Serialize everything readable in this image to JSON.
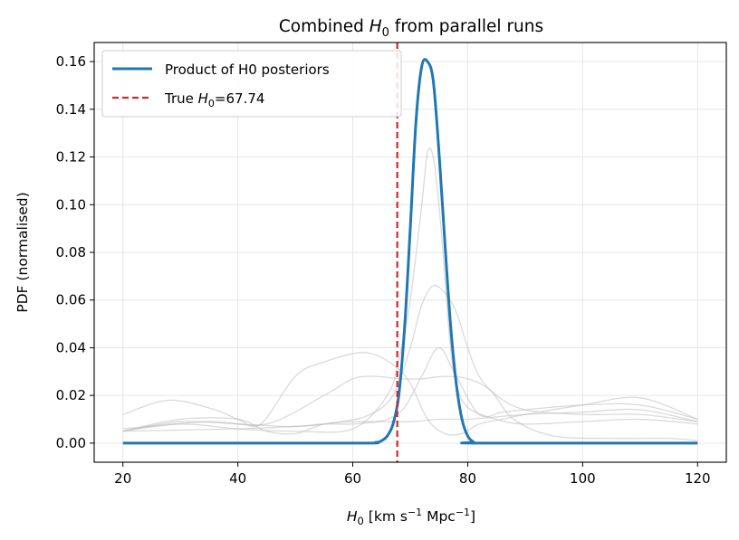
{
  "chart_data": {
    "type": "line",
    "title_parts": [
      "Combined ",
      "H",
      "0",
      " from parallel runs"
    ],
    "xlabel_parts": [
      "H",
      "0",
      " [km s",
      "−1",
      " Mpc",
      "−1",
      "]"
    ],
    "ylabel": "PDF (normalised)",
    "xlim": [
      15,
      125
    ],
    "ylim": [
      -0.008,
      0.168
    ],
    "x_ticks": [
      20,
      40,
      60,
      80,
      100,
      120
    ],
    "x_tick_labels": [
      "20",
      "40",
      "60",
      "80",
      "100",
      "120"
    ],
    "y_ticks": [
      0.0,
      0.02,
      0.04,
      0.06,
      0.08,
      0.1,
      0.12,
      0.14,
      0.16
    ],
    "y_tick_labels": [
      "0.00",
      "0.02",
      "0.04",
      "0.06",
      "0.08",
      "0.10",
      "0.12",
      "0.14",
      "0.16"
    ],
    "grid": true,
    "legend_position": "upper-left",
    "legend": {
      "product_label": "Product of H0 posteriors",
      "true_label_parts": [
        "True ",
        "H",
        "0",
        "=67.74"
      ]
    },
    "true_h0": 67.74,
    "colors": {
      "product": "#1f77b4",
      "true_line": "#d62728",
      "individual": "#bbbbbb",
      "grid": "#e6e6e6"
    },
    "series": [
      {
        "name": "Product of H0 posteriors",
        "role": "product",
        "x": [
          20,
          60,
          64,
          65,
          66,
          67,
          68,
          69,
          70,
          71,
          72,
          73,
          74,
          75,
          76,
          77,
          78,
          79,
          80,
          81,
          82,
          120
        ],
        "y": [
          0.0,
          0.0,
          0.0003,
          0.001,
          0.003,
          0.008,
          0.02,
          0.048,
          0.09,
          0.135,
          0.158,
          0.16,
          0.152,
          0.122,
          0.085,
          0.05,
          0.025,
          0.01,
          0.003,
          0.0005,
          0.0,
          0.0
        ]
      },
      {
        "role": "individual",
        "x": [
          20,
          30,
          40,
          45,
          50,
          55,
          60,
          63,
          66,
          69,
          72,
          75,
          78,
          82,
          86,
          90,
          100,
          110,
          120
        ],
        "y": [
          0.005,
          0.01,
          0.01,
          0.005,
          0.004,
          0.008,
          0.009,
          0.009,
          0.01,
          0.015,
          0.028,
          0.04,
          0.028,
          0.012,
          0.013,
          0.014,
          0.016,
          0.016,
          0.01
        ]
      },
      {
        "role": "individual",
        "x": [
          20,
          28,
          36,
          40,
          44,
          50,
          55,
          62,
          67,
          70,
          73,
          76,
          79,
          82,
          86,
          90,
          100,
          110,
          120
        ],
        "y": [
          0.012,
          0.018,
          0.014,
          0.01,
          0.008,
          0.028,
          0.034,
          0.038,
          0.033,
          0.025,
          0.01,
          0.004,
          0.004,
          0.008,
          0.01,
          0.012,
          0.016,
          0.019,
          0.01
        ]
      },
      {
        "role": "individual",
        "x": [
          20,
          30,
          40,
          50,
          60,
          66,
          68,
          70,
          72,
          73,
          74,
          75,
          76,
          77,
          78,
          80,
          85,
          90,
          100,
          110,
          120
        ],
        "y": [
          0.005,
          0.008,
          0.006,
          0.005,
          0.006,
          0.02,
          0.035,
          0.06,
          0.1,
          0.122,
          0.12,
          0.1,
          0.07,
          0.04,
          0.025,
          0.015,
          0.01,
          0.008,
          0.009,
          0.01,
          0.008
        ]
      },
      {
        "role": "individual",
        "x": [
          20,
          30,
          40,
          50,
          58,
          63,
          67,
          70,
          72,
          74,
          76,
          78,
          80,
          82,
          85,
          90,
          100,
          110,
          120
        ],
        "y": [
          0.005,
          0.009,
          0.008,
          0.007,
          0.009,
          0.012,
          0.02,
          0.04,
          0.058,
          0.066,
          0.063,
          0.055,
          0.04,
          0.028,
          0.02,
          0.014,
          0.012,
          0.012,
          0.009
        ]
      },
      {
        "role": "individual",
        "x": [
          20,
          35,
          45,
          55,
          60,
          64,
          68,
          72,
          76,
          80,
          84,
          88,
          95,
          105,
          115,
          120
        ],
        "y": [
          0.006,
          0.009,
          0.008,
          0.02,
          0.027,
          0.028,
          0.027,
          0.027,
          0.028,
          0.027,
          0.022,
          0.01,
          0.003,
          0.002,
          0.002,
          0.001
        ]
      },
      {
        "role": "individual",
        "x": [
          20,
          40,
          50,
          55,
          60,
          65,
          70,
          75,
          80,
          85,
          90,
          100,
          110,
          120
        ],
        "y": [
          0.005,
          0.006,
          0.007,
          0.008,
          0.008,
          0.009,
          0.009,
          0.01,
          0.01,
          0.011,
          0.012,
          0.013,
          0.014,
          0.009
        ]
      }
    ]
  }
}
